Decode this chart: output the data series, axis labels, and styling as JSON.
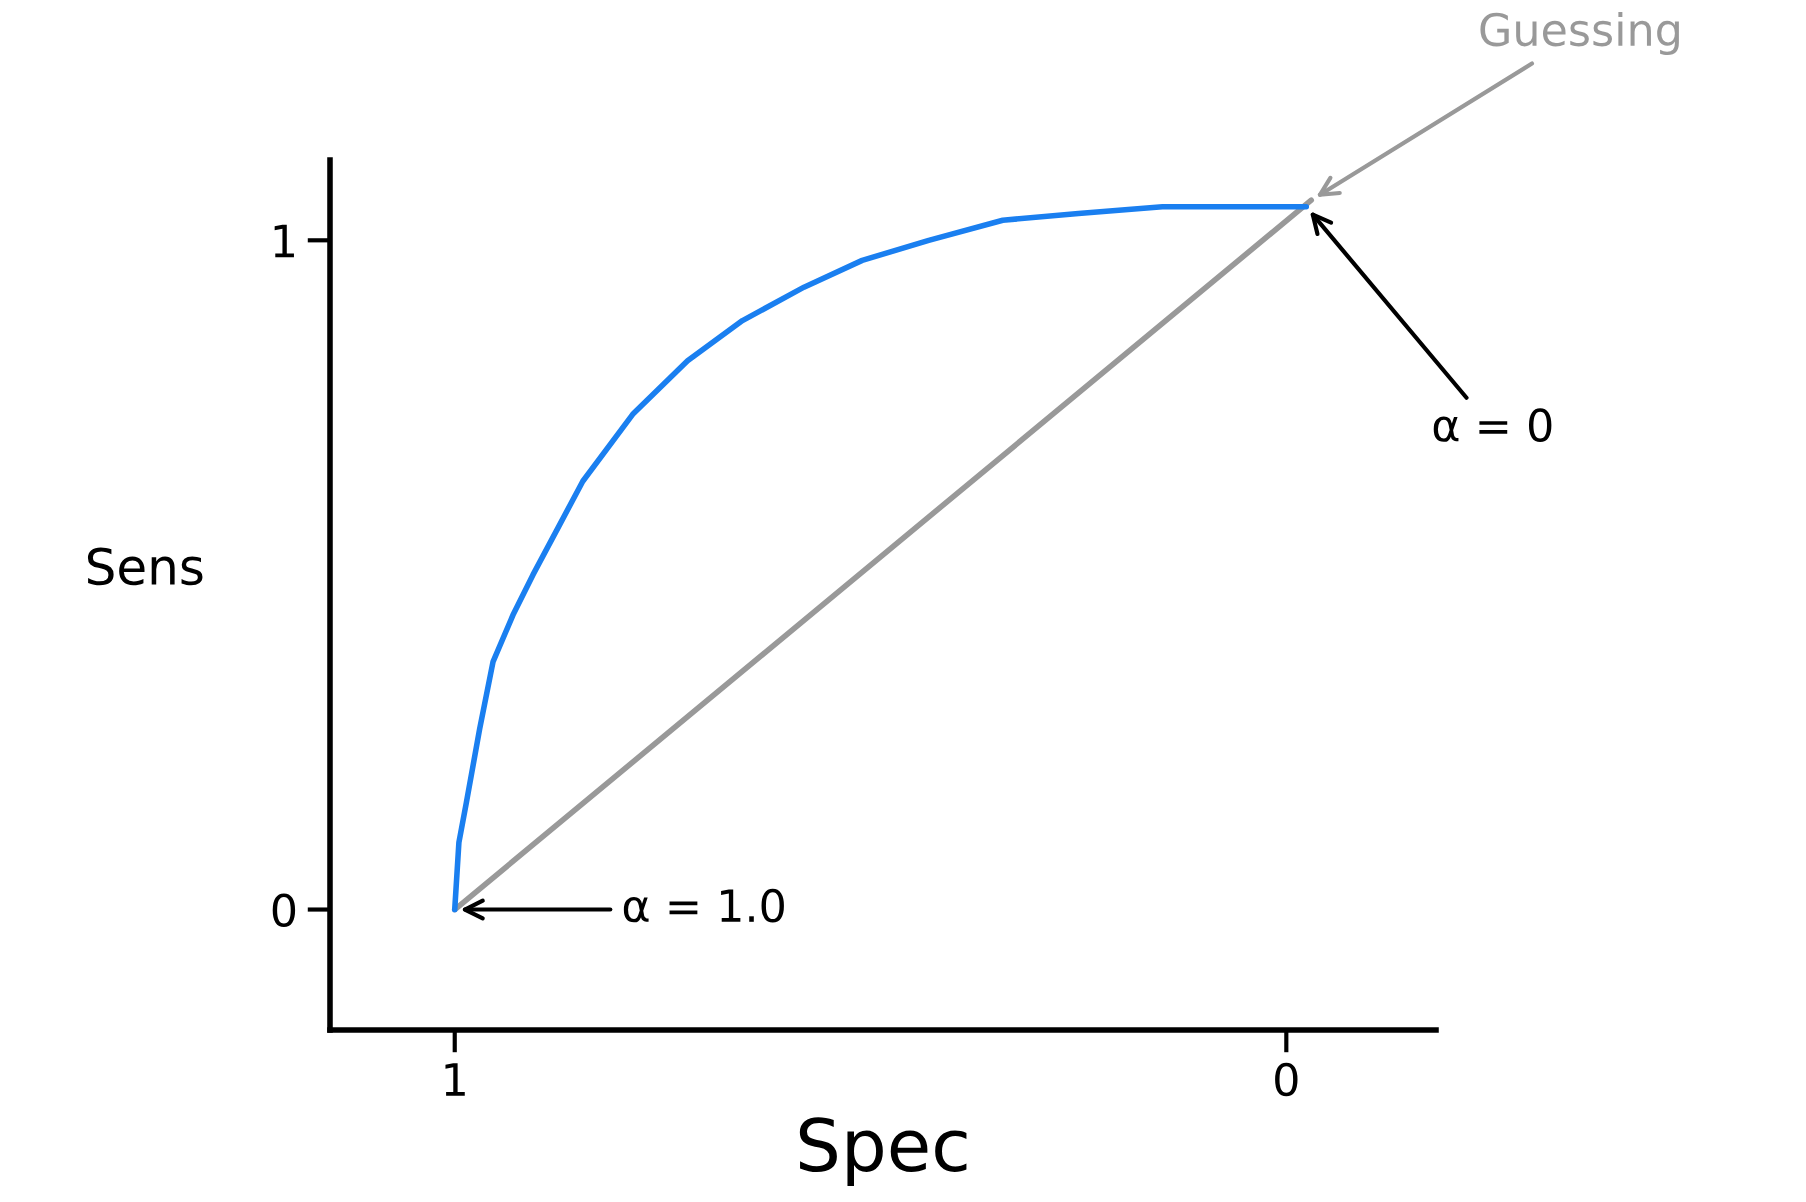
{
  "chart_data": {
    "type": "line",
    "xlabel": "Spec",
    "ylabel": "Sens",
    "xlim": [
      1.15,
      -0.18
    ],
    "ylim": [
      -0.18,
      1.12
    ],
    "xticks": [
      1,
      0
    ],
    "yticks": [
      0,
      1
    ],
    "grid": false,
    "marker": "none",
    "line_style": "solid",
    "series": [
      {
        "color": "#999999",
        "x": [
          1.0,
          -0.03
        ],
        "values": [
          0,
          1.06
        ]
      },
      {
        "color": "#1a7ff0",
        "x": [
          1.0,
          0.995,
          0.986,
          0.97,
          0.954,
          0.93,
          0.906,
          0.876,
          0.846,
          0.786,
          0.72,
          0.654,
          0.58,
          0.51,
          0.43,
          0.341,
          0.25,
          0.149,
          0.06,
          -0.024
        ],
        "values": [
          0,
          0.1,
          0.16,
          0.27,
          0.37,
          0.44,
          0.5,
          0.57,
          0.64,
          0.74,
          0.82,
          0.88,
          0.93,
          0.97,
          1.0,
          1.03,
          1.04,
          1.05,
          1.05,
          1.05
        ]
      }
    ],
    "annotations": [
      {
        "text": "α = 1.0",
        "x": 1.0,
        "y": 0
      },
      {
        "text": "α = 0",
        "x": -0.024,
        "y": 1.05
      },
      {
        "text": "Guessing",
        "x": -0.03,
        "y": 1.06
      }
    ]
  }
}
